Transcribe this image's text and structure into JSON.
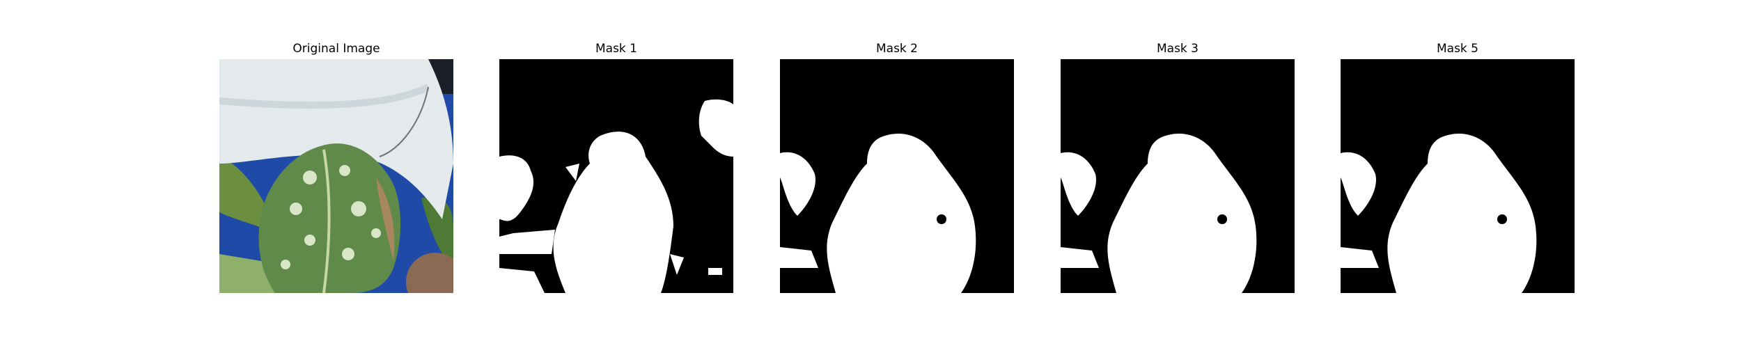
{
  "figure": {
    "panels": [
      {
        "title": "Original Image",
        "kind": "photo"
      },
      {
        "title": "Mask 1",
        "kind": "mask"
      },
      {
        "title": "Mask 2",
        "kind": "mask"
      },
      {
        "title": "Mask 3",
        "kind": "mask"
      },
      {
        "title": "Mask 5",
        "kind": "mask"
      }
    ]
  },
  "colors": {
    "mask_background": "#000000",
    "mask_foreground": "#ffffff",
    "pot_white": "#e4eaec",
    "leaf_green": "#5f8a4a",
    "variegation": "#d9e6c8",
    "backdrop_blue": "#1f4aa8",
    "brown_spot": "#8a6a52"
  }
}
